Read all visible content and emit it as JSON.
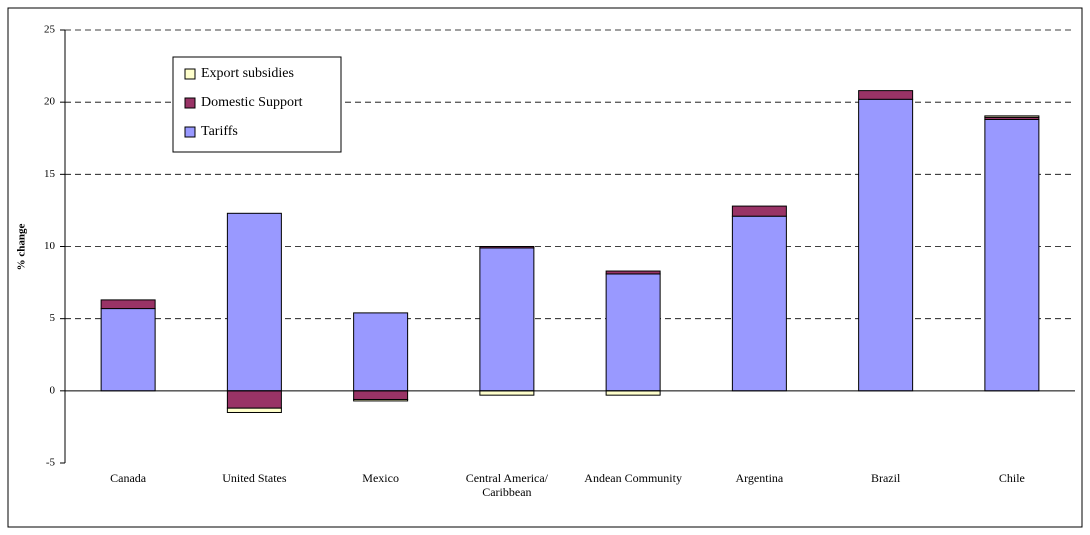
{
  "chart_data": {
    "type": "stacked_bar",
    "y_label": "% change",
    "categories": [
      "Canada",
      "United States",
      "Mexico",
      "Central America/\nCaribbean",
      "Andean Community",
      "Argentina",
      "Brazil",
      "Chile"
    ],
    "series": [
      {
        "name": "Export subsidies",
        "color": "#ffffcc",
        "values": [
          0,
          -0.3,
          -0.1,
          -0.3,
          -0.3,
          0,
          0,
          0.1
        ]
      },
      {
        "name": "Domestic Support",
        "color": "#993366",
        "values": [
          0.6,
          -1.2,
          -0.6,
          0.1,
          0.2,
          0.7,
          0.6,
          0.15
        ]
      },
      {
        "name": "Tariffs",
        "color": "#9999ff",
        "values": [
          5.7,
          12.3,
          5.4,
          9.9,
          8.1,
          12.1,
          20.2,
          18.8
        ]
      }
    ],
    "ylim": [
      -5,
      25
    ],
    "yticks": [
      -5,
      0,
      5,
      10,
      15,
      20,
      25
    ],
    "grid": true
  }
}
